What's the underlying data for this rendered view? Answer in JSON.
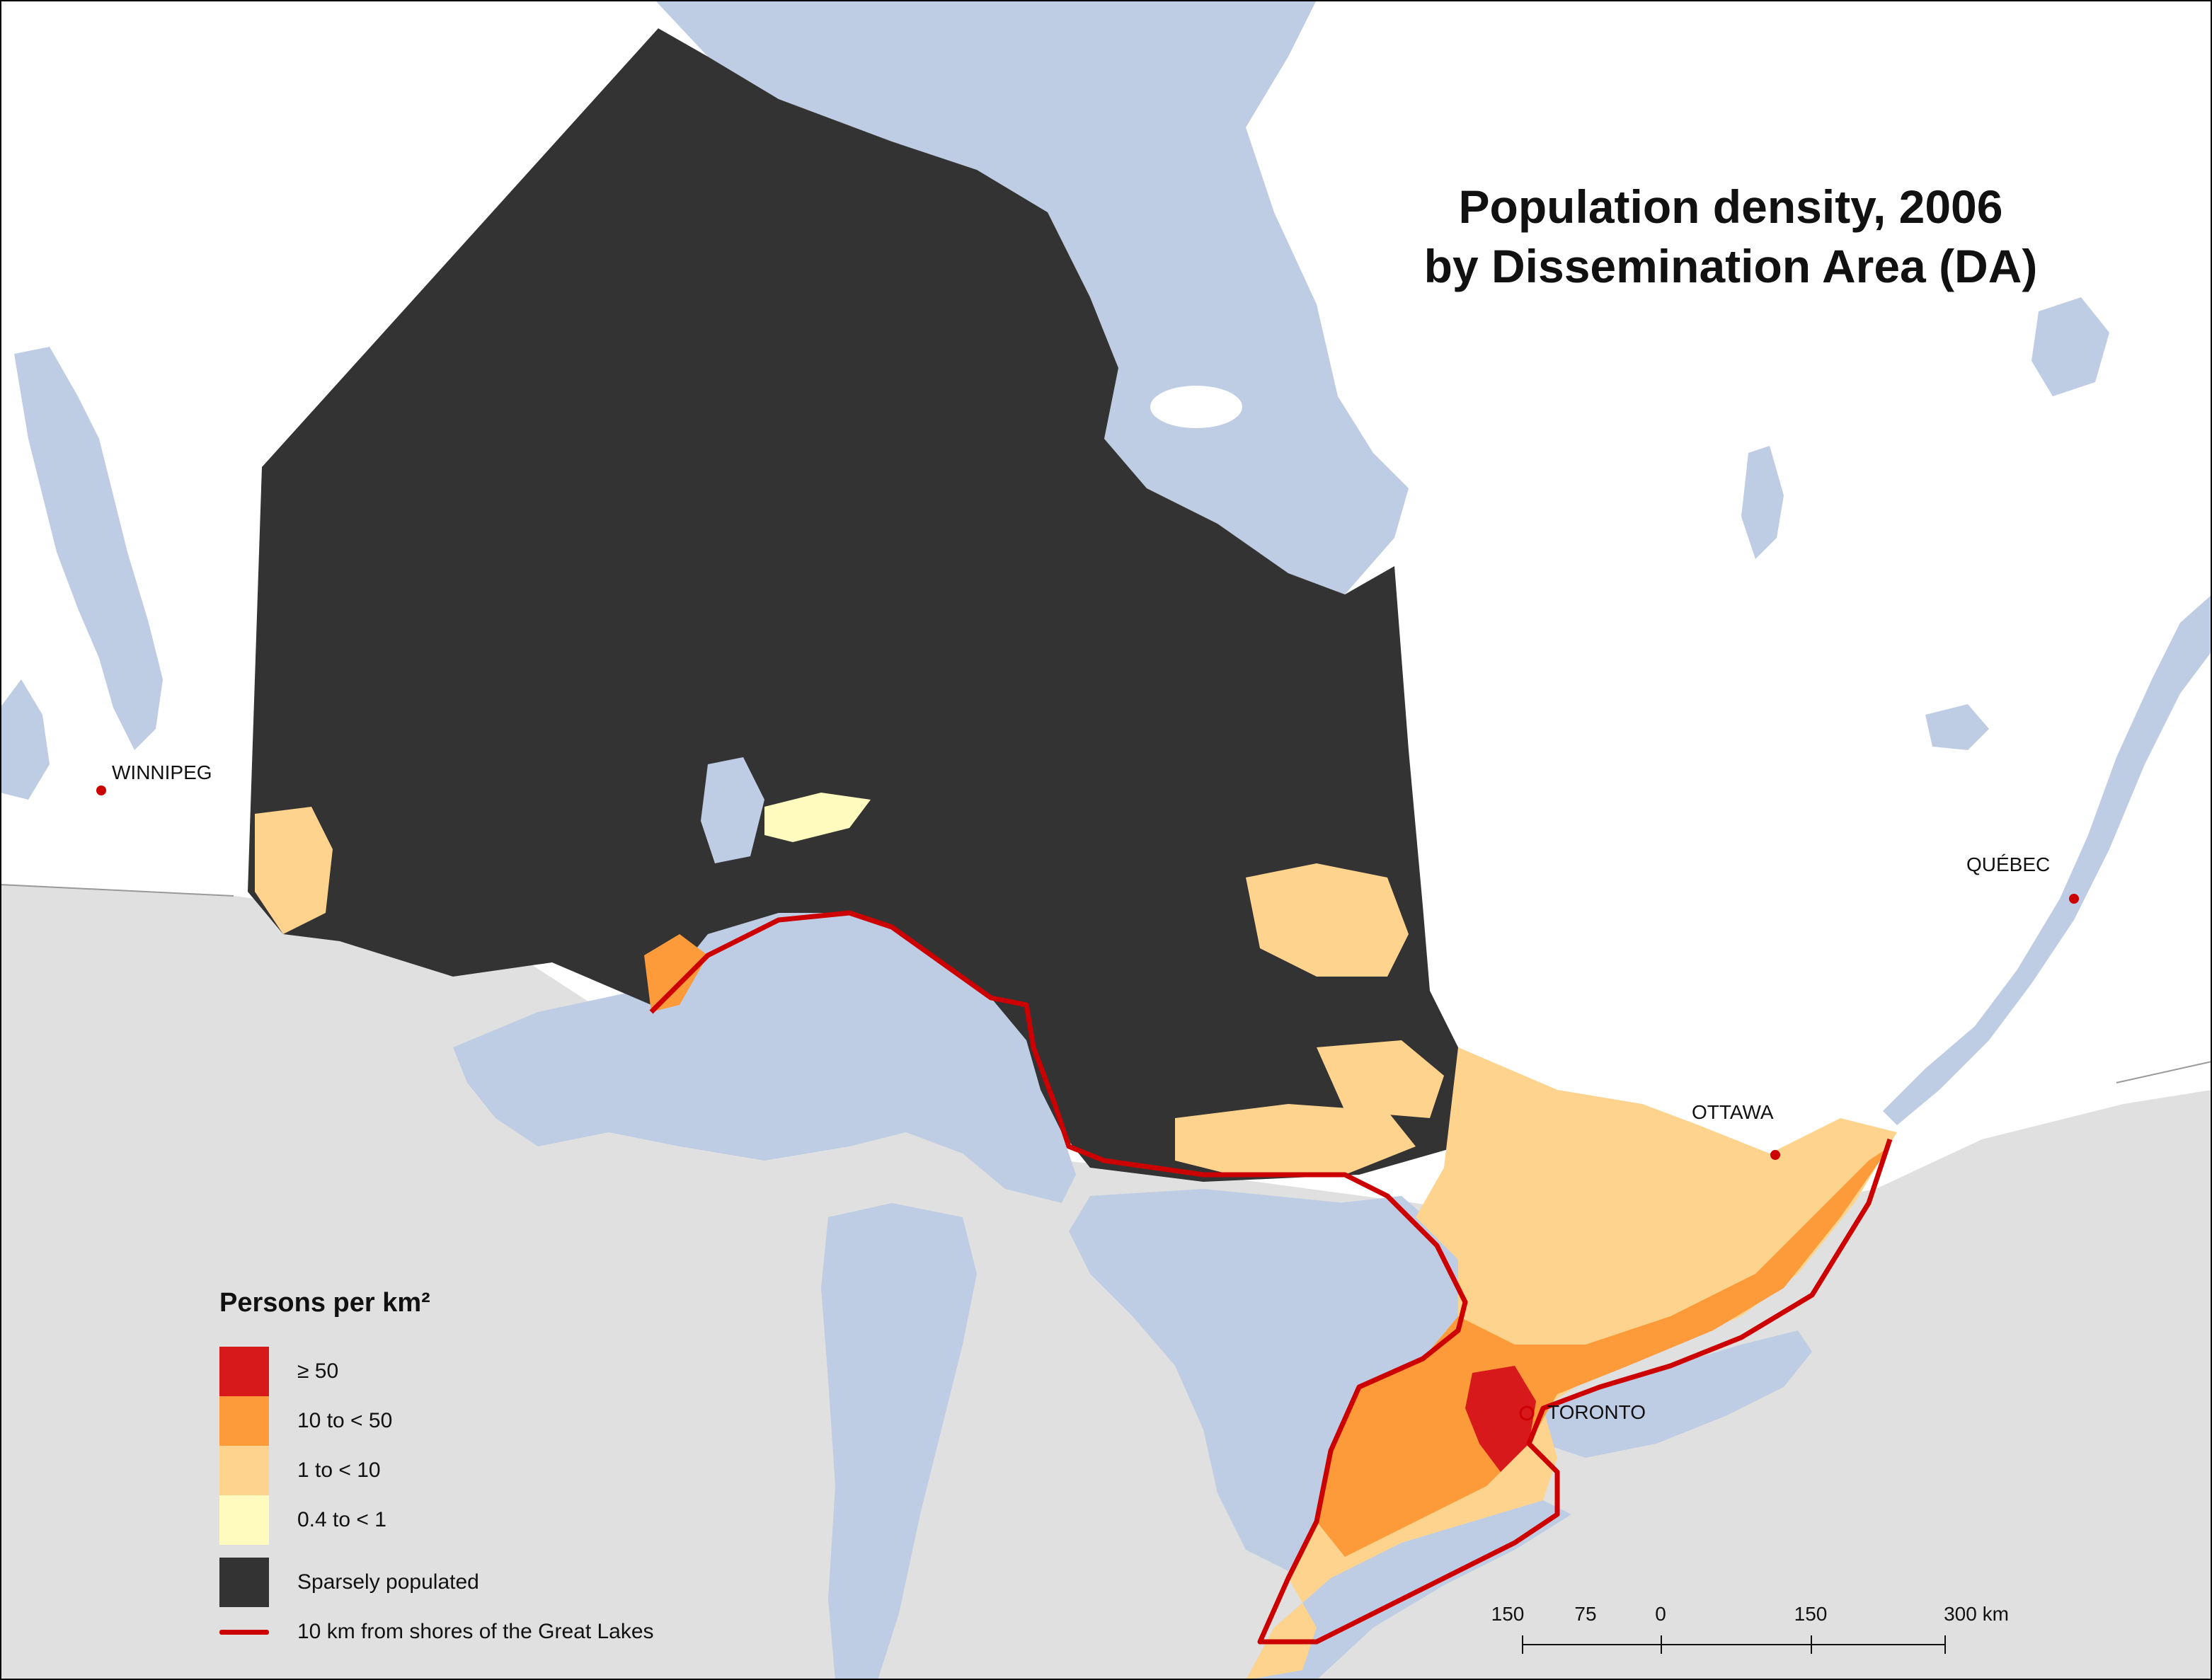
{
  "title": {
    "line1": "Population density, 2006",
    "line2": "by Dissemination Area (DA)"
  },
  "cities": {
    "winnipeg": "WINNIPEG",
    "quebec": "QUÉBEC",
    "ottawa": "OTTAWA",
    "toronto": "TORONTO"
  },
  "legend": {
    "title": "Persons per km²",
    "items": [
      {
        "label": "≥ 50",
        "color": "#d7191c"
      },
      {
        "label": "10 to < 50",
        "color": "#fd9a3a"
      },
      {
        "label": "1 to < 10",
        "color": "#fed38e"
      },
      {
        "label": "0.4 to < 1",
        "color": "#fffbbf"
      }
    ],
    "sparse": {
      "label": "Sparsely populated",
      "color": "#333333"
    },
    "shore_line": {
      "label": "10 km from shores of the Great Lakes",
      "color": "#cc0000"
    }
  },
  "scale_bar": {
    "labels": [
      "150",
      "75",
      "0",
      "150",
      "300 km"
    ]
  },
  "colors": {
    "water": "#bfcde4",
    "us_land": "#e0e0e0",
    "canada_land": "#ffffff",
    "sparse": "#333333"
  }
}
